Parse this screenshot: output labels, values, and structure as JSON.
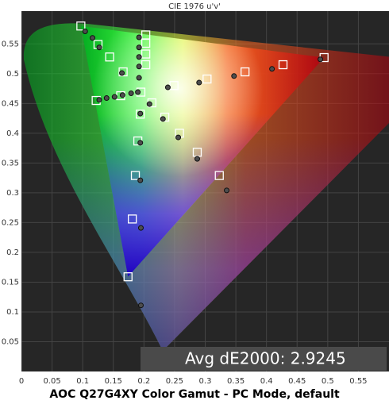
{
  "chart_data": {
    "type": "scatter",
    "title": "CIE 1976 u'v'",
    "caption": "AOC Q27G4XY Color Gamut - PC Mode, default",
    "annotation": "Avg dE2000: 2.9245",
    "xlim": [
      0,
      0.6
    ],
    "ylim": [
      0,
      0.605
    ],
    "xticks": [
      0,
      0.05,
      0.1,
      0.15,
      0.2,
      0.25,
      0.3,
      0.35,
      0.4,
      0.45,
      0.5,
      0.55
    ],
    "yticks": [
      0.05,
      0.1,
      0.15,
      0.2,
      0.25,
      0.3,
      0.35,
      0.4,
      0.45,
      0.5,
      0.55
    ],
    "grid": true,
    "gamut": {
      "x": [
        0.494,
        0.097,
        0.174
      ],
      "values": [
        0.527,
        0.58,
        0.159
      ]
    },
    "series": [
      {
        "marker": "square",
        "color": "#ffffff",
        "x": [
          0.097,
          0.125,
          0.144,
          0.166,
          0.195,
          0.203,
          0.203,
          0.203,
          0.203,
          0.249,
          0.303,
          0.365,
          0.427,
          0.494,
          0.122,
          0.162,
          0.213,
          0.234,
          0.258,
          0.287,
          0.323,
          0.194,
          0.19,
          0.186,
          0.181,
          0.174
        ],
        "values": [
          0.58,
          0.549,
          0.528,
          0.503,
          0.469,
          0.565,
          0.551,
          0.533,
          0.515,
          0.48,
          0.491,
          0.503,
          0.515,
          0.527,
          0.455,
          0.463,
          0.451,
          0.427,
          0.4,
          0.368,
          0.329,
          0.432,
          0.387,
          0.329,
          0.256,
          0.159
        ]
      },
      {
        "marker": "circle",
        "color": "#4d4d4d",
        "x": [
          0.104,
          0.116,
          0.127,
          0.164,
          0.19,
          0.192,
          0.192,
          0.192,
          0.192,
          0.192,
          0.239,
          0.29,
          0.347,
          0.409,
          0.488,
          0.127,
          0.139,
          0.152,
          0.165,
          0.179,
          0.209,
          0.231,
          0.256,
          0.287,
          0.335,
          0.194,
          0.194,
          0.194,
          0.195,
          0.195
        ],
        "values": [
          0.571,
          0.56,
          0.544,
          0.501,
          0.469,
          0.561,
          0.544,
          0.528,
          0.512,
          0.493,
          0.477,
          0.485,
          0.496,
          0.508,
          0.524,
          0.456,
          0.459,
          0.461,
          0.464,
          0.467,
          0.449,
          0.424,
          0.393,
          0.357,
          0.304,
          0.433,
          0.384,
          0.321,
          0.241,
          0.111
        ]
      }
    ]
  }
}
